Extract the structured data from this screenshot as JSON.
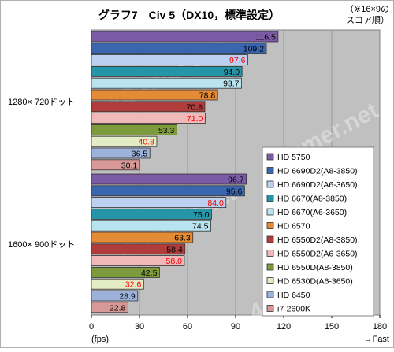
{
  "chart_data": {
    "type": "bar",
    "orientation": "horizontal",
    "title": "グラフ7　Civ 5（DX10，標準設定）",
    "note": [
      "（※16×9の",
      "スコア順）"
    ],
    "groups": [
      "1280× 720ドット",
      "1600× 900ドット"
    ],
    "series": [
      {
        "name": "HD 5750",
        "color": "#7b5aa6",
        "label_color": "#000000",
        "values": [
          116.5,
          96.7
        ]
      },
      {
        "name": "HD 6690D2(A8-3850)",
        "color": "#3a66b0",
        "label_color": "#000000",
        "values": [
          109.2,
          95.6
        ]
      },
      {
        "name": "HD 6690D2(A6-3650)",
        "color": "#bcd1ef",
        "label_color": "#ff0000",
        "values": [
          97.6,
          84.0
        ]
      },
      {
        "name": "HD 6670(A8-3850)",
        "color": "#2596a8",
        "label_color": "#000000",
        "values": [
          94.0,
          75.0
        ]
      },
      {
        "name": "HD 6670(A6-3650)",
        "color": "#b9e4ef",
        "label_color": "#000000",
        "values": [
          93.7,
          74.5
        ]
      },
      {
        "name": "HD 6570",
        "color": "#e58a35",
        "label_color": "#000000",
        "values": [
          78.8,
          63.3
        ]
      },
      {
        "name": "HD 6550D2(A8-3850)",
        "color": "#b03c3c",
        "label_color": "#000000",
        "values": [
          70.8,
          58.4
        ]
      },
      {
        "name": "HD 6550D2(A6-3650)",
        "color": "#f0b8b8",
        "label_color": "#ff0000",
        "values": [
          71.0,
          58.0
        ]
      },
      {
        "name": "HD 6550D(A8-3850)",
        "color": "#7d9a3c",
        "label_color": "#000000",
        "values": [
          53.3,
          42.5
        ]
      },
      {
        "name": "HD 6530D(A6-3650)",
        "color": "#e4ecc6",
        "label_color": "#ff0000",
        "values": [
          40.8,
          32.6
        ]
      },
      {
        "name": "HD 6450",
        "color": "#9db2da",
        "label_color": "#000000",
        "values": [
          36.5,
          28.9
        ]
      },
      {
        "name": "i7-2600K",
        "color": "#d99898",
        "label_color": "#000000",
        "values": [
          30.1,
          22.8
        ]
      }
    ],
    "xlim": [
      0,
      180
    ],
    "xticks": [
      0,
      30,
      60,
      90,
      120,
      150,
      180
    ],
    "xlabel_left": "(fps)",
    "xlabel_right": "→Fast",
    "watermark": "4Gamer.net",
    "legend_position": "bottom-right",
    "grid": true
  }
}
